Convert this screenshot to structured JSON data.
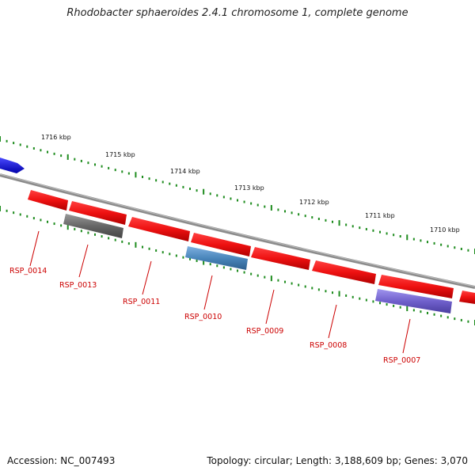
{
  "title": "Rhodobacter sphaeroides 2.4.1 chromosome 1, complete genome",
  "accession": "Accession: NC_007493",
  "topology": "Topology: circular; Length: 3,188,609 bp; Genes: 3,070",
  "colors": {
    "backbone": "#8c8c8c",
    "tick": "#1e8c1e",
    "gene_forward": "#ee1111",
    "gene_blue": "#1111ee",
    "gene_gray": "#666666",
    "gene_steel": "#4a86bb",
    "gene_purple": "#7060cc",
    "label": "#cc0000"
  },
  "kbp_labels": [
    "1716 kbp",
    "1715 kbp",
    "1714 kbp",
    "1713 kbp",
    "1712 kbp",
    "1711 kbp",
    "1710 kbp"
  ],
  "gene_labels": [
    "RSP_0014",
    "RSP_0013",
    "RSP_0011",
    "RSP_0010",
    "RSP_0009",
    "RSP_0008",
    "RSP_0007"
  ]
}
